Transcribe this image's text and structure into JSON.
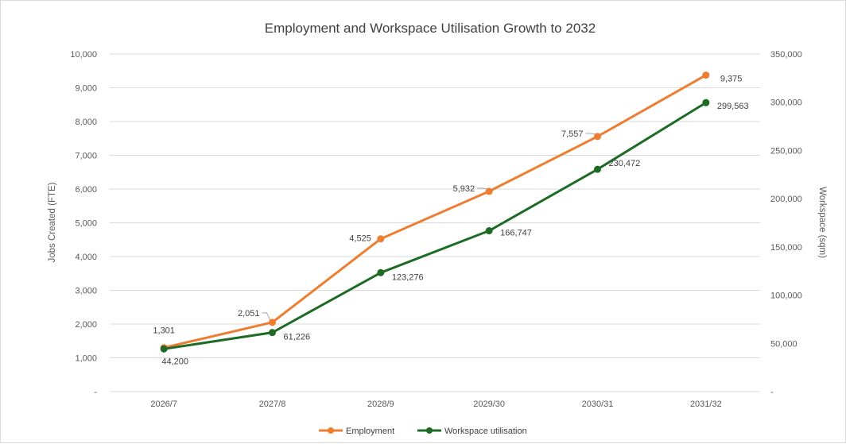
{
  "chart_data": {
    "type": "line",
    "title": "Employment and Workspace Utilisation Growth to 2032",
    "categories": [
      "2026/7",
      "2027/8",
      "2028/9",
      "2029/30",
      "2030/31",
      "2031/32"
    ],
    "y_left": {
      "label": "Jobs Created (FTE)",
      "range": [
        0,
        10000
      ],
      "ticks": [
        "-",
        "1,000",
        "2,000",
        "3,000",
        "4,000",
        "5,000",
        "6,000",
        "7,000",
        "8,000",
        "9,000",
        "10,000"
      ]
    },
    "y_right": {
      "label": "Workspace (sqm)",
      "range": [
        0,
        350000
      ],
      "ticks": [
        "-",
        "50,000",
        "100,000",
        "150,000",
        "200,000",
        "250,000",
        "300,000",
        "350,000"
      ]
    },
    "grid": true,
    "legend_position": "bottom",
    "series": [
      {
        "name": "Employment",
        "axis": "left",
        "color": "#ED7D31",
        "values": [
          1301,
          2051,
          4525,
          5932,
          7557,
          9375
        ],
        "labels": [
          "1,301",
          "2,051",
          "4,525",
          "5,932",
          "7,557",
          "9,375"
        ]
      },
      {
        "name": "Workspace utilisation",
        "axis": "right",
        "color": "#1E6B25",
        "values": [
          44200,
          61226,
          123276,
          166747,
          230472,
          299563
        ],
        "labels": [
          "44,200",
          "61,226",
          "123,276",
          "166,747",
          "230,472",
          "299,563"
        ]
      }
    ]
  }
}
